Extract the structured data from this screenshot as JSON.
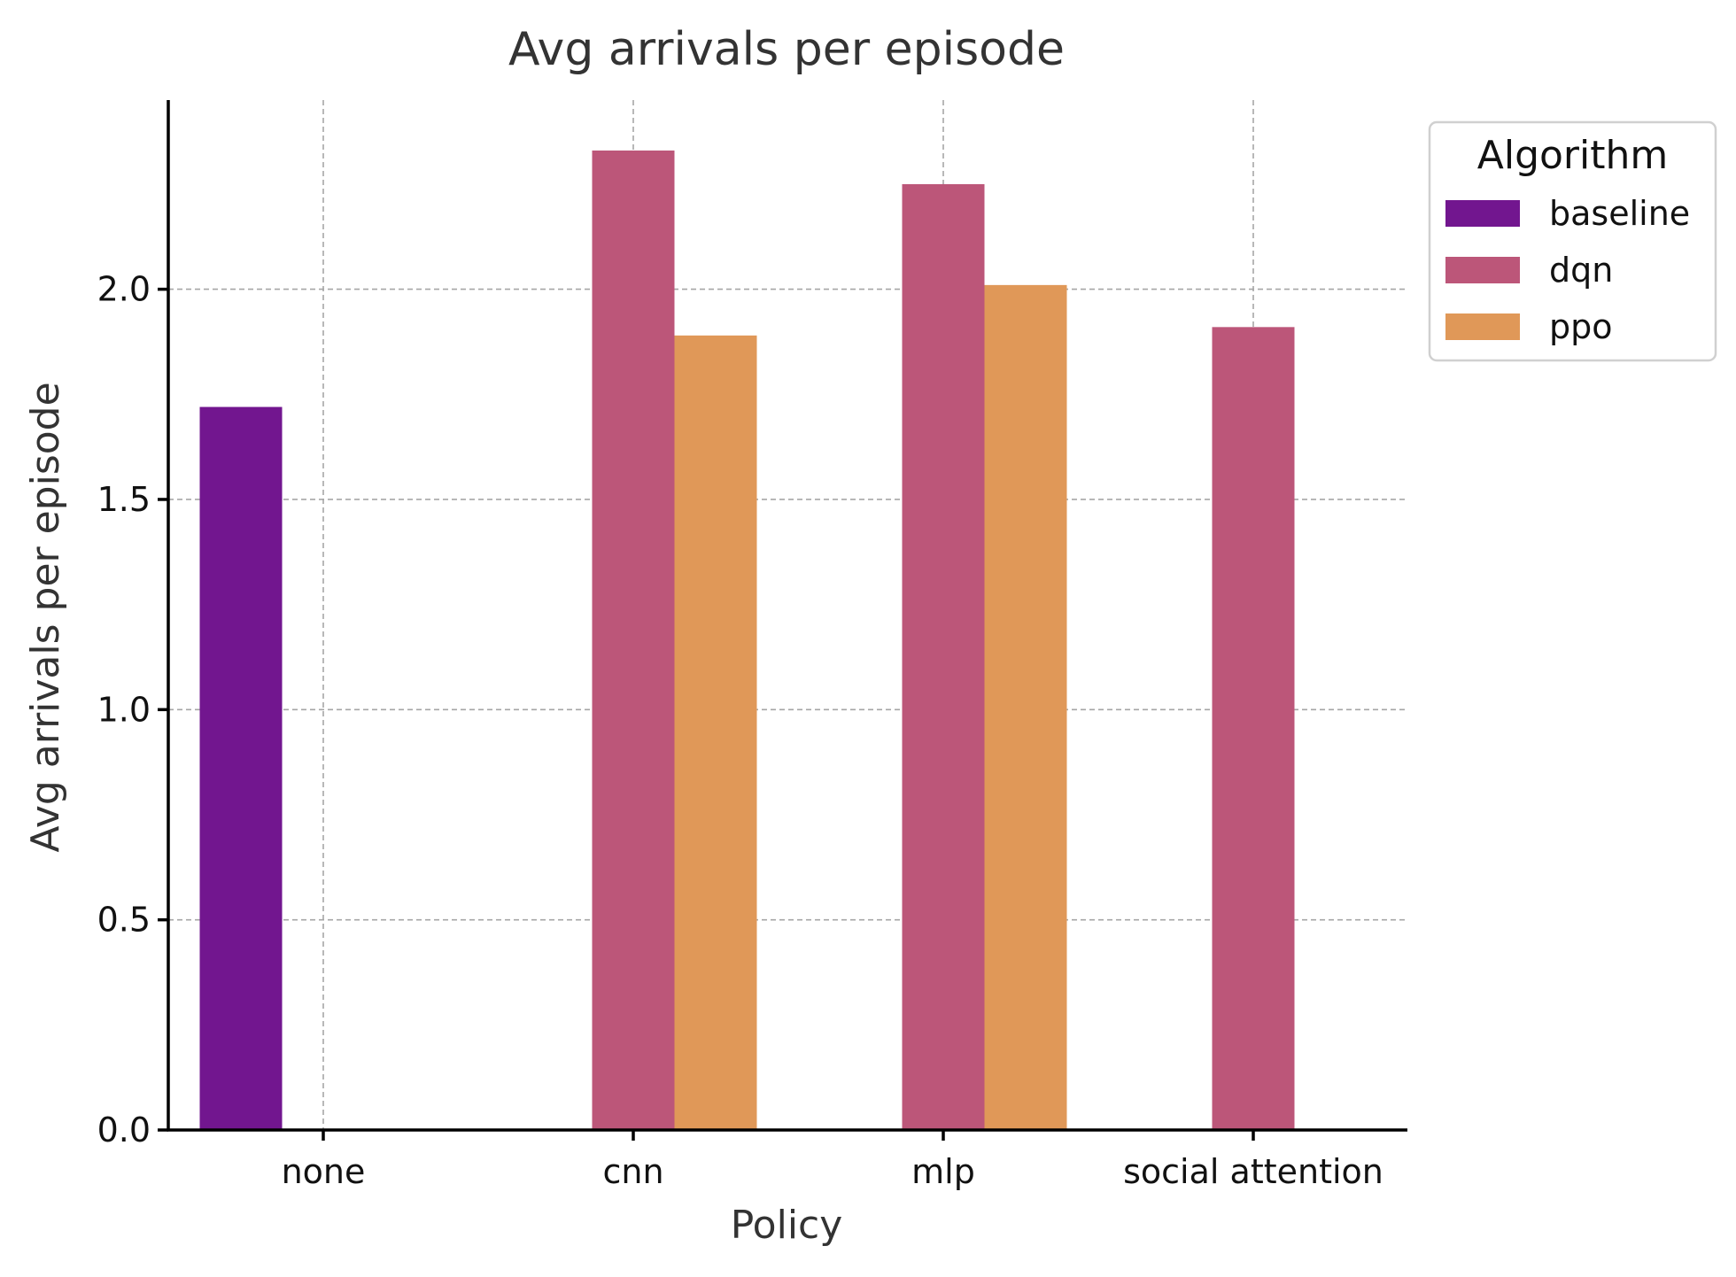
{
  "chart_data": {
    "type": "bar",
    "title": "Avg arrivals per episode",
    "xlabel": "Policy",
    "ylabel": "Avg arrivals per episode",
    "categories": [
      "none",
      "cnn",
      "mlp",
      "social attention"
    ],
    "series": [
      {
        "name": "baseline",
        "color": "#72168f",
        "values": [
          1.72,
          null,
          null,
          null
        ]
      },
      {
        "name": "dqn",
        "color": "#bc5679",
        "values": [
          null,
          2.33,
          2.25,
          1.91
        ]
      },
      {
        "name": "ppo",
        "color": "#e09858",
        "values": [
          null,
          1.89,
          2.01,
          null
        ]
      }
    ],
    "ylim": [
      0,
      2.45
    ],
    "yticks": [
      0.0,
      0.5,
      1.0,
      1.5,
      2.0
    ],
    "ytick_labels": [
      "0.0",
      "0.5",
      "1.0",
      "1.5",
      "2.0"
    ],
    "grid": true,
    "legend": {
      "title": "Algorithm",
      "position": "outside-top-right"
    }
  }
}
